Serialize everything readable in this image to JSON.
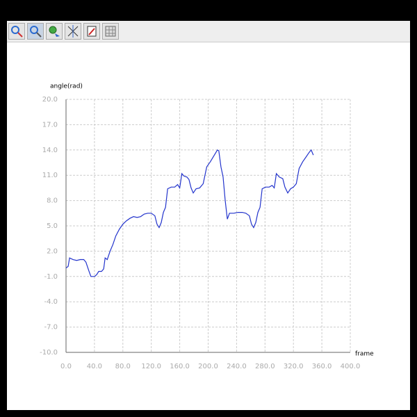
{
  "chart_data": {
    "type": "line",
    "xlabel": "frame",
    "ylabel": "angle(rad)",
    "color": "#2233cc",
    "grid": true,
    "xlim": [
      0,
      400
    ],
    "ylim": [
      -10,
      20
    ],
    "xticks": [
      {
        "value": 0,
        "label": "0.0"
      },
      {
        "value": 40,
        "label": "40.0"
      },
      {
        "value": 80,
        "label": "80.0"
      },
      {
        "value": 120,
        "label": "120.0"
      },
      {
        "value": 160,
        "label": "160.0"
      },
      {
        "value": 200,
        "label": "200.0"
      },
      {
        "value": 240,
        "label": "240.0"
      },
      {
        "value": 280,
        "label": "280.0"
      },
      {
        "value": 320,
        "label": "320.0"
      },
      {
        "value": 360,
        "label": "360.0"
      },
      {
        "value": 400,
        "label": "400.0"
      }
    ],
    "yticks": [
      {
        "value": -10,
        "label": "-10.0"
      },
      {
        "value": -7,
        "label": "-7.0"
      },
      {
        "value": -4,
        "label": "-4.0"
      },
      {
        "value": -1,
        "label": "-1.0"
      },
      {
        "value": 2,
        "label": "2.0"
      },
      {
        "value": 5,
        "label": "5.0"
      },
      {
        "value": 8,
        "label": "8.0"
      },
      {
        "value": 11,
        "label": "11.0"
      },
      {
        "value": 14,
        "label": "14.0"
      },
      {
        "value": 17,
        "label": "17.0"
      },
      {
        "value": 20,
        "label": "20.0"
      }
    ],
    "x": [
      0,
      3,
      5,
      10,
      15,
      20,
      25,
      28,
      32,
      35,
      40,
      43,
      46,
      50,
      53,
      55,
      58,
      62,
      66,
      70,
      75,
      80,
      85,
      90,
      95,
      100,
      105,
      110,
      115,
      120,
      125,
      128,
      131,
      134,
      137,
      140,
      143,
      148,
      153,
      157,
      160,
      163,
      166,
      170,
      173,
      176,
      179,
      183,
      188,
      193,
      198,
      203,
      208,
      213,
      215,
      218,
      221,
      224,
      227,
      230,
      236,
      242,
      248,
      253,
      258,
      261,
      264,
      267,
      270,
      273,
      276,
      281,
      286,
      290,
      293,
      296,
      300,
      305,
      308,
      312,
      316,
      320,
      324,
      328,
      333,
      338,
      342,
      345,
      348
    ],
    "values": [
      0.0,
      0.2,
      1.2,
      1.0,
      0.9,
      1.0,
      1.0,
      0.7,
      -0.3,
      -1.0,
      -1.0,
      -0.8,
      -0.4,
      -0.4,
      -0.1,
      1.2,
      1.0,
      2.0,
      2.8,
      3.8,
      4.6,
      5.2,
      5.6,
      5.9,
      6.1,
      6.0,
      6.1,
      6.4,
      6.5,
      6.5,
      6.2,
      5.2,
      4.8,
      5.4,
      6.6,
      7.2,
      9.4,
      9.6,
      9.6,
      9.9,
      9.5,
      11.2,
      10.9,
      10.8,
      10.5,
      9.5,
      8.9,
      9.4,
      9.5,
      10.0,
      12.0,
      12.6,
      13.3,
      14.0,
      13.9,
      12.0,
      10.8,
      8.0,
      5.8,
      6.5,
      6.5,
      6.6,
      6.6,
      6.5,
      6.2,
      5.2,
      4.8,
      5.4,
      6.6,
      7.2,
      9.4,
      9.6,
      9.6,
      9.8,
      9.5,
      11.2,
      10.8,
      10.6,
      9.6,
      8.9,
      9.4,
      9.6,
      10.0,
      11.8,
      12.6,
      13.2,
      13.7,
      14.0,
      13.4
    ]
  }
}
